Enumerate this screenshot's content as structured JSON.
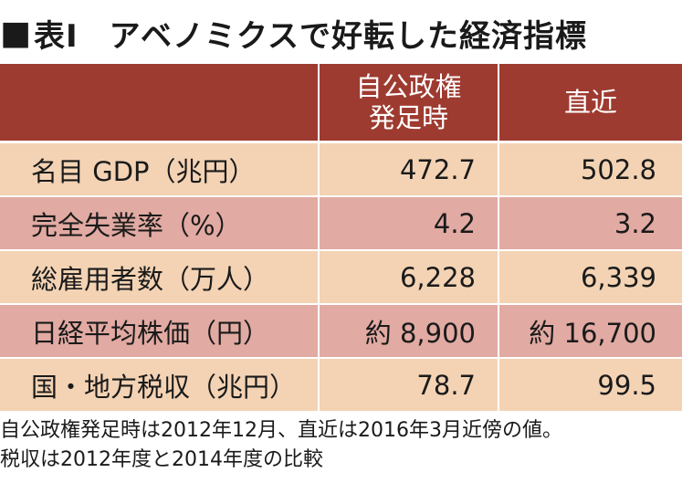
{
  "title": {
    "marker": "■",
    "label": "表Ⅰ",
    "text": "アベノミクスで好転した経済指標"
  },
  "table": {
    "headers": [
      "",
      "自公政権\n発足時",
      "直近"
    ],
    "header_lines": {
      "col1": [
        "自公政権",
        "発足時"
      ],
      "col2": [
        "直近"
      ]
    },
    "rows": [
      {
        "label": "名目 GDP（兆円）",
        "start": "472.7",
        "recent": "502.8"
      },
      {
        "label": "完全失業率（%）",
        "start": "4.2",
        "recent": "3.2"
      },
      {
        "label": "総雇用者数（万人）",
        "start": "6,228",
        "recent": "6,339"
      },
      {
        "label": "日経平均株価（円）",
        "start": "約 8,900",
        "recent": "約 16,700"
      },
      {
        "label": "国・地方税収（兆円）",
        "start": "78.7",
        "recent": "99.5"
      }
    ]
  },
  "notes": [
    "自公政権発足時は2012年12月、直近は2016年3月近傍の値。",
    "税収は2012年度と2014年度の比較"
  ],
  "colors": {
    "header_bg": "#9e3b30",
    "row_light": "#f3d3b4",
    "row_dark": "#e1aaa2"
  }
}
